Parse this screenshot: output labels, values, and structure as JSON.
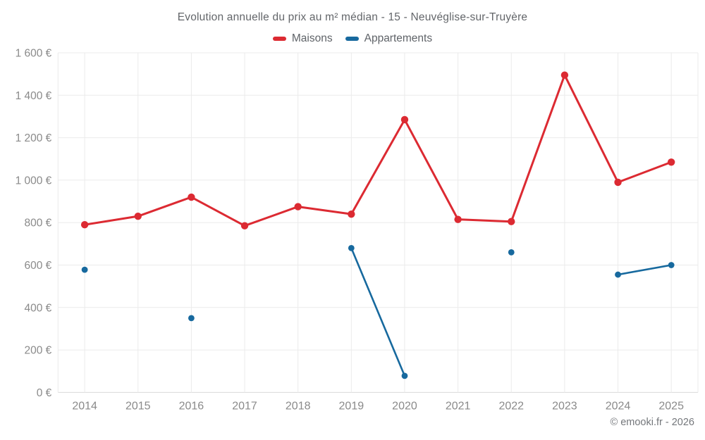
{
  "header": {
    "title": "Evolution annuelle du prix au m² médian - 15 - Neuvéglise-sur-Truyère"
  },
  "legend": {
    "items": [
      {
        "label": "Maisons",
        "color": "#dc2a32"
      },
      {
        "label": "Appartements",
        "color": "#17699e"
      }
    ]
  },
  "footer": {
    "credit": "© emooki.fr - 2026"
  },
  "colors": {
    "background": "#ffffff",
    "grid": "#ebebeb",
    "axis_line": "#d9d9d9",
    "tick_label": "#8a8a8a",
    "title": "#63666a",
    "legend_label": "#5f6368",
    "footer": "#74777b",
    "maisons": "#dc2a32",
    "appartements": "#17699e"
  },
  "chart_data": {
    "type": "line",
    "title": "Evolution annuelle du prix au m² médian - 15 - Neuvéglise-sur-Truyère",
    "categories": [
      "2014",
      "2015",
      "2016",
      "2017",
      "2018",
      "2019",
      "2020",
      "2021",
      "2022",
      "2023",
      "2024",
      "2025"
    ],
    "series": [
      {
        "name": "Maisons",
        "color": "#dc2a32",
        "values": [
          790,
          830,
          920,
          785,
          875,
          840,
          1285,
          815,
          805,
          1495,
          990,
          1085
        ]
      },
      {
        "name": "Appartements",
        "color": "#17699e",
        "values": [
          578,
          null,
          350,
          null,
          null,
          680,
          78,
          null,
          660,
          null,
          555,
          600
        ]
      }
    ],
    "xlabel": "",
    "ylabel": "",
    "ylim": [
      0,
      1600
    ],
    "ytick_step": 200,
    "ytick_suffix": " €",
    "grid": true,
    "legend_position": "top",
    "note": "points with null are years without apartment data; lines only join consecutive non-null years"
  }
}
